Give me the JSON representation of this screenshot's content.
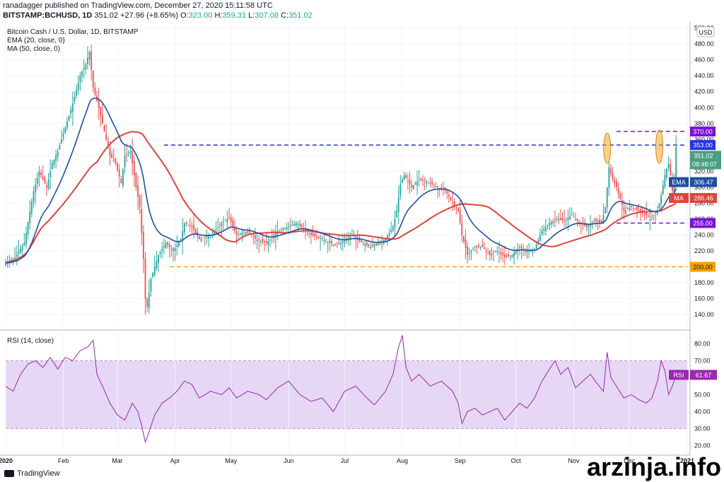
{
  "header": {
    "line1": "ranadagger published on TradingView.com, December 27, 2020 15:11:58 UTC",
    "symbol": "BITSTAMP:BCHUSD, 1D",
    "price": "351.02",
    "change": "+27.96 (+8.65%)",
    "o_label": "O:",
    "o_value": "323.00",
    "h_label": "H:",
    "h_value": "359.31",
    "l_label": "L:",
    "l_value": "307.08",
    "c_label": "C:",
    "c_value": "351.02"
  },
  "price_legend": {
    "title": "Bitcoin Cash / U.S. Dollar, 1D, BITSTAMP",
    "ema": "EMA (20, close, 0)",
    "ma": "MA (50, close, 0)"
  },
  "rsi_legend": {
    "title": "RSI (14, close)"
  },
  "currency_badge": "USD",
  "brand": "TradingView",
  "watermark": "arzinja.info",
  "colors": {
    "up": "#26a69a",
    "down": "#ef5350",
    "ema": "#1e4fa3",
    "ma": "#e0443a",
    "rsi": "#9c27b0",
    "rsi_band": "#e6d7f5",
    "blue_line": "#2631e6",
    "purple_line": "#7a12d8",
    "orange_line": "#f5a200",
    "ellipse": "#f0a830"
  },
  "chart_data": [
    {
      "type": "candlestick",
      "title": "Bitcoin Cash / U.S. Dollar, 1D, BITSTAMP",
      "ylim": [
        125,
        505
      ],
      "y_ticks": [
        140,
        160,
        180,
        200,
        220,
        240,
        260,
        280,
        300,
        320,
        340,
        360,
        380,
        400,
        420,
        440,
        460,
        480,
        500
      ],
      "x_ticks": [
        "2020",
        "Feb",
        "Mar",
        "Apr",
        "May",
        "Jun",
        "Jul",
        "Aug",
        "Sep",
        "Oct",
        "Nov",
        "Dec",
        "2021"
      ],
      "x_tick_days": [
        0,
        31,
        60,
        91,
        121,
        152,
        182,
        213,
        244,
        274,
        305,
        335,
        366
      ],
      "days": 361,
      "close_anchors": [
        [
          0,
          205
        ],
        [
          5,
          212
        ],
        [
          10,
          230
        ],
        [
          15,
          295
        ],
        [
          18,
          320
        ],
        [
          22,
          300
        ],
        [
          25,
          330
        ],
        [
          28,
          345
        ],
        [
          32,
          375
        ],
        [
          36,
          405
        ],
        [
          40,
          440
        ],
        [
          43,
          455
        ],
        [
          45,
          470
        ],
        [
          47,
          425
        ],
        [
          50,
          400
        ],
        [
          53,
          370
        ],
        [
          56,
          340
        ],
        [
          59,
          330
        ],
        [
          62,
          305
        ],
        [
          64,
          340
        ],
        [
          67,
          345
        ],
        [
          70,
          300
        ],
        [
          72,
          275
        ],
        [
          74,
          210
        ],
        [
          75,
          160
        ],
        [
          76,
          150
        ],
        [
          78,
          185
        ],
        [
          82,
          215
        ],
        [
          86,
          230
        ],
        [
          90,
          220
        ],
        [
          94,
          235
        ],
        [
          96,
          255
        ],
        [
          100,
          250
        ],
        [
          104,
          235
        ],
        [
          110,
          240
        ],
        [
          116,
          255
        ],
        [
          120,
          262
        ],
        [
          124,
          240
        ],
        [
          130,
          245
        ],
        [
          134,
          235
        ],
        [
          140,
          230
        ],
        [
          146,
          245
        ],
        [
          150,
          248
        ],
        [
          156,
          255
        ],
        [
          160,
          248
        ],
        [
          164,
          240
        ],
        [
          170,
          235
        ],
        [
          176,
          228
        ],
        [
          180,
          230
        ],
        [
          186,
          240
        ],
        [
          190,
          232
        ],
        [
          196,
          225
        ],
        [
          200,
          230
        ],
        [
          204,
          235
        ],
        [
          208,
          250
        ],
        [
          210,
          270
        ],
        [
          212,
          305
        ],
        [
          214,
          315
        ],
        [
          218,
          300
        ],
        [
          222,
          310
        ],
        [
          228,
          305
        ],
        [
          232,
          300
        ],
        [
          236,
          296
        ],
        [
          240,
          280
        ],
        [
          243,
          270
        ],
        [
          245,
          240
        ],
        [
          248,
          215
        ],
        [
          252,
          225
        ],
        [
          256,
          225
        ],
        [
          260,
          215
        ],
        [
          264,
          220
        ],
        [
          268,
          212
        ],
        [
          272,
          215
        ],
        [
          276,
          225
        ],
        [
          280,
          218
        ],
        [
          284,
          222
        ],
        [
          288,
          245
        ],
        [
          292,
          255
        ],
        [
          296,
          260
        ],
        [
          300,
          258
        ],
        [
          304,
          265
        ],
        [
          308,
          255
        ],
        [
          312,
          250
        ],
        [
          316,
          258
        ],
        [
          320,
          255
        ],
        [
          322,
          275
        ],
        [
          324,
          325
        ],
        [
          326,
          310
        ],
        [
          328,
          300
        ],
        [
          330,
          285
        ],
        [
          332,
          270
        ],
        [
          336,
          275
        ],
        [
          340,
          270
        ],
        [
          344,
          265
        ],
        [
          346,
          260
        ],
        [
          350,
          270
        ],
        [
          352,
          290
        ],
        [
          354,
          315
        ],
        [
          356,
          330
        ],
        [
          357,
          315
        ],
        [
          358,
          295
        ],
        [
          359,
          310
        ],
        [
          360,
          351.02
        ]
      ],
      "ema": {
        "name": "EMA",
        "period": 20,
        "last": 306.47
      },
      "ma": {
        "name": "MA",
        "period": 50,
        "last": 286.46
      },
      "levels": [
        {
          "value": 370.0,
          "label": "370.00",
          "style": "purple-dashed"
        },
        {
          "value": 353.0,
          "label": "353.00",
          "style": "blue-dashed"
        },
        {
          "value": 255.0,
          "label": "255.00",
          "style": "purple-dashed"
        },
        {
          "value": 200.0,
          "label": "200.00",
          "style": "orange-dashed"
        }
      ],
      "price_tag": {
        "value": "351.02",
        "countdown": "08:48:07"
      },
      "ema_tag": {
        "name": "EMA",
        "value": "306.47"
      },
      "ma_tag": {
        "name": "MA",
        "value": "286.46"
      },
      "highlights": [
        {
          "day": 323,
          "from": 330,
          "to": 368
        },
        {
          "day": 351,
          "from": 330,
          "to": 372
        }
      ]
    },
    {
      "type": "line",
      "title": "RSI (14, close)",
      "ylim": [
        16,
        86
      ],
      "y_ticks": [
        20,
        30,
        40,
        50,
        60,
        70,
        80
      ],
      "band": [
        30,
        70
      ],
      "rsi_anchors": [
        [
          0,
          55
        ],
        [
          4,
          52
        ],
        [
          8,
          62
        ],
        [
          12,
          68
        ],
        [
          16,
          70
        ],
        [
          20,
          66
        ],
        [
          24,
          72
        ],
        [
          28,
          65
        ],
        [
          32,
          72
        ],
        [
          36,
          70
        ],
        [
          40,
          76
        ],
        [
          44,
          78
        ],
        [
          47,
          82
        ],
        [
          49,
          62
        ],
        [
          52,
          55
        ],
        [
          56,
          45
        ],
        [
          60,
          38
        ],
        [
          64,
          35
        ],
        [
          68,
          45
        ],
        [
          71,
          40
        ],
        [
          73,
          32
        ],
        [
          75,
          22
        ],
        [
          77,
          28
        ],
        [
          80,
          38
        ],
        [
          84,
          45
        ],
        [
          88,
          48
        ],
        [
          92,
          52
        ],
        [
          96,
          58
        ],
        [
          100,
          56
        ],
        [
          104,
          48
        ],
        [
          110,
          52
        ],
        [
          116,
          50
        ],
        [
          120,
          54
        ],
        [
          124,
          48
        ],
        [
          130,
          52
        ],
        [
          136,
          50
        ],
        [
          140,
          47
        ],
        [
          146,
          54
        ],
        [
          152,
          58
        ],
        [
          158,
          50
        ],
        [
          164,
          46
        ],
        [
          170,
          48
        ],
        [
          176,
          40
        ],
        [
          182,
          52
        ],
        [
          188,
          55
        ],
        [
          194,
          48
        ],
        [
          198,
          44
        ],
        [
          204,
          52
        ],
        [
          208,
          62
        ],
        [
          211,
          78
        ],
        [
          213,
          85
        ],
        [
          215,
          66
        ],
        [
          218,
          58
        ],
        [
          222,
          62
        ],
        [
          228,
          55
        ],
        [
          234,
          58
        ],
        [
          240,
          52
        ],
        [
          243,
          45
        ],
        [
          245,
          33
        ],
        [
          248,
          40
        ],
        [
          252,
          42
        ],
        [
          256,
          38
        ],
        [
          260,
          40
        ],
        [
          264,
          42
        ],
        [
          268,
          35
        ],
        [
          272,
          40
        ],
        [
          276,
          45
        ],
        [
          280,
          42
        ],
        [
          284,
          48
        ],
        [
          288,
          58
        ],
        [
          292,
          65
        ],
        [
          295,
          70
        ],
        [
          298,
          62
        ],
        [
          302,
          66
        ],
        [
          306,
          54
        ],
        [
          310,
          58
        ],
        [
          314,
          62
        ],
        [
          318,
          56
        ],
        [
          321,
          52
        ],
        [
          323,
          75
        ],
        [
          325,
          60
        ],
        [
          328,
          55
        ],
        [
          332,
          48
        ],
        [
          336,
          50
        ],
        [
          340,
          47
        ],
        [
          344,
          45
        ],
        [
          347,
          48
        ],
        [
          350,
          58
        ],
        [
          352,
          70
        ],
        [
          354,
          64
        ],
        [
          356,
          50
        ],
        [
          358,
          55
        ],
        [
          360,
          61.67
        ]
      ],
      "rsi_tag": {
        "name": "RSI",
        "value": "61.67"
      }
    }
  ]
}
